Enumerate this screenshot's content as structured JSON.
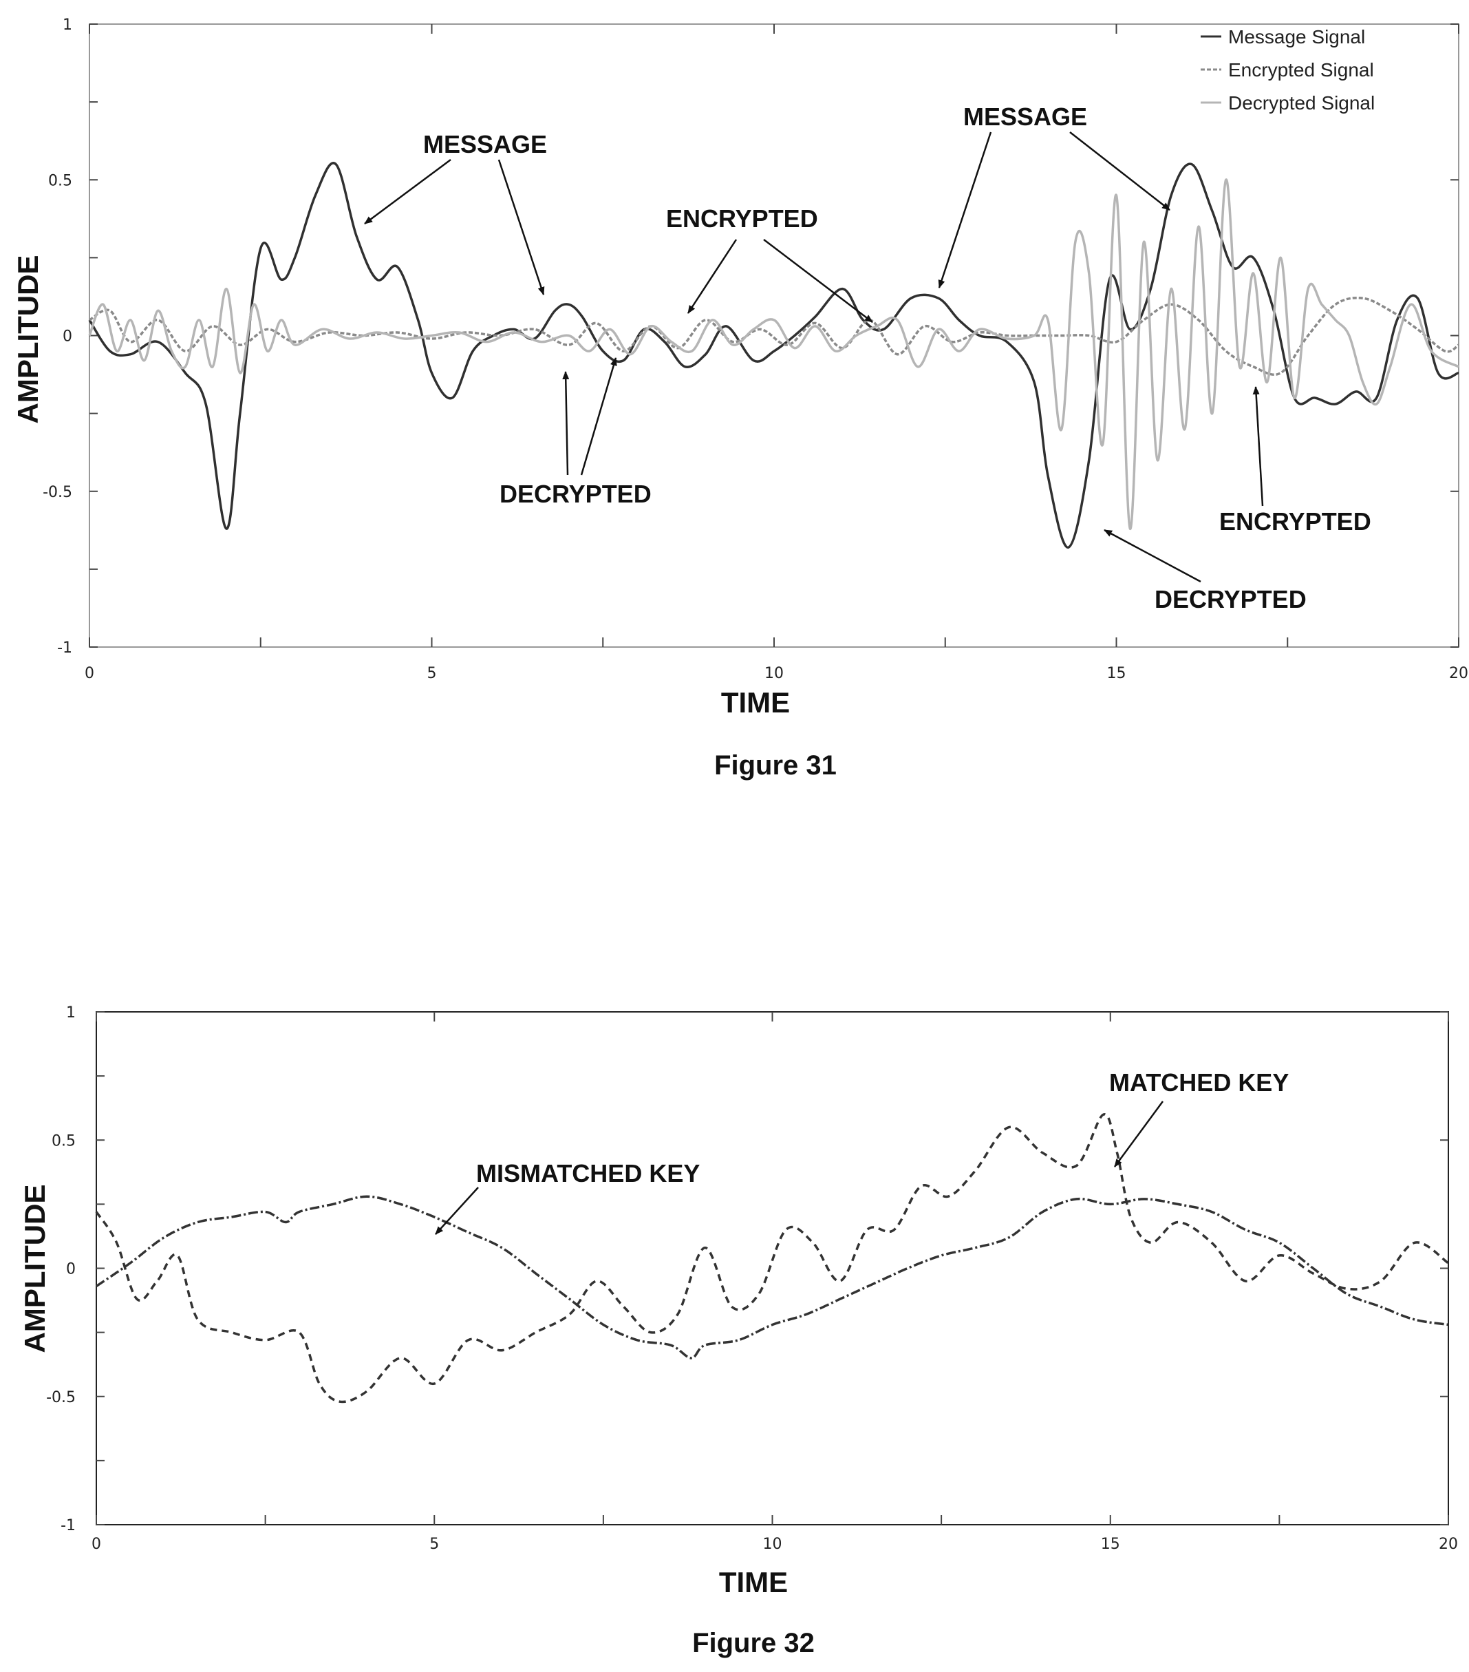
{
  "chart_data": [
    {
      "type": "line",
      "figure_label": "Figure 31",
      "xlabel": "TIME",
      "ylabel": "AMPLITUDE",
      "xlim": [
        0,
        20
      ],
      "ylim": [
        -1,
        1
      ],
      "xticks": [
        0,
        5,
        10,
        15,
        20
      ],
      "xtick_labels": [
        "0",
        "5",
        "10",
        "15",
        "20"
      ],
      "yticks": [
        -1,
        -0.5,
        0,
        0.5,
        1
      ],
      "ytick_labels": [
        "-1",
        "-0.5",
        "0",
        "0.5",
        "1"
      ],
      "grid": false,
      "legend_position": "top-right",
      "series": [
        {
          "name": "Message Signal",
          "color": "#303030",
          "dash": "solid",
          "x": [
            0,
            0.3,
            0.6,
            1.0,
            1.4,
            1.7,
            2.0,
            2.2,
            2.5,
            2.8,
            3.0,
            3.3,
            3.6,
            3.9,
            4.2,
            4.5,
            4.8,
            5.0,
            5.3,
            5.6,
            5.9,
            6.2,
            6.5,
            6.8,
            7.0,
            7.2,
            7.5,
            7.8,
            8.1,
            8.4,
            8.7,
            9.0,
            9.3,
            9.7,
            10.0,
            10.3,
            10.6,
            11.0,
            11.3,
            11.6,
            12.0,
            12.4,
            12.7,
            13.0,
            13.4,
            13.8,
            14.0,
            14.3,
            14.6,
            14.9,
            15.2,
            15.5,
            15.8,
            16.1,
            16.4,
            16.7,
            17.0,
            17.3,
            17.6,
            17.9,
            18.2,
            18.5,
            18.8,
            19.1,
            19.4,
            19.7,
            20.0
          ],
          "y": [
            0.05,
            -0.05,
            -0.06,
            -0.02,
            -0.12,
            -0.22,
            -0.62,
            -0.25,
            0.28,
            0.18,
            0.25,
            0.45,
            0.55,
            0.32,
            0.18,
            0.22,
            0.05,
            -0.12,
            -0.2,
            -0.05,
            0.0,
            0.02,
            -0.01,
            0.08,
            0.1,
            0.06,
            -0.05,
            -0.08,
            0.02,
            -0.02,
            -0.1,
            -0.06,
            0.03,
            -0.08,
            -0.05,
            0.0,
            0.06,
            0.15,
            0.05,
            0.02,
            0.12,
            0.12,
            0.05,
            0.0,
            -0.02,
            -0.15,
            -0.45,
            -0.68,
            -0.4,
            0.18,
            0.02,
            0.15,
            0.45,
            0.55,
            0.4,
            0.22,
            0.25,
            0.08,
            -0.2,
            -0.2,
            -0.22,
            -0.18,
            -0.2,
            0.05,
            0.12,
            -0.12,
            -0.12
          ]
        },
        {
          "name": "Encrypted Signal",
          "color": "#8a8a8a",
          "dash": "6,3",
          "x": [
            0,
            0.3,
            0.6,
            1.0,
            1.4,
            1.8,
            2.2,
            2.6,
            3.0,
            3.5,
            4.0,
            4.5,
            5.0,
            5.5,
            6.0,
            6.5,
            7.0,
            7.4,
            7.8,
            8.2,
            8.6,
            9.0,
            9.4,
            9.8,
            10.2,
            10.6,
            11.0,
            11.4,
            11.8,
            12.2,
            12.6,
            13.0,
            13.4,
            13.8,
            14.2,
            14.6,
            15.0,
            15.4,
            15.8,
            16.2,
            16.6,
            17.0,
            17.4,
            17.8,
            18.2,
            18.6,
            19.0,
            19.4,
            19.8,
            20.0
          ],
          "y": [
            0.05,
            0.08,
            -0.02,
            0.05,
            -0.05,
            0.03,
            -0.03,
            0.02,
            -0.02,
            0.01,
            0.0,
            0.01,
            -0.01,
            0.01,
            0.0,
            0.02,
            -0.03,
            0.04,
            -0.05,
            0.03,
            -0.04,
            0.05,
            -0.02,
            0.02,
            -0.03,
            0.04,
            -0.04,
            0.05,
            -0.06,
            0.03,
            -0.02,
            0.01,
            0.0,
            0.0,
            0.0,
            0.0,
            -0.02,
            0.05,
            0.1,
            0.05,
            -0.05,
            -0.1,
            -0.12,
            0.0,
            0.1,
            0.12,
            0.08,
            0.02,
            -0.05,
            -0.03
          ]
        },
        {
          "name": "Decrypted Signal",
          "color": "#b5b5b5",
          "dash": "solid",
          "x": [
            0,
            0.2,
            0.4,
            0.6,
            0.8,
            1.0,
            1.2,
            1.4,
            1.6,
            1.8,
            2.0,
            2.2,
            2.4,
            2.6,
            2.8,
            3.0,
            3.4,
            3.8,
            4.2,
            4.6,
            5.0,
            5.4,
            5.8,
            6.2,
            6.6,
            7.0,
            7.3,
            7.6,
            7.9,
            8.2,
            8.5,
            8.8,
            9.1,
            9.4,
            9.7,
            10.0,
            10.3,
            10.6,
            10.9,
            11.2,
            11.5,
            11.8,
            12.1,
            12.4,
            12.7,
            13.0,
            13.4,
            13.8,
            14.0,
            14.2,
            14.4,
            14.6,
            14.8,
            15.0,
            15.2,
            15.4,
            15.6,
            15.8,
            16.0,
            16.2,
            16.4,
            16.6,
            16.8,
            17.0,
            17.2,
            17.4,
            17.6,
            17.8,
            18.0,
            18.2,
            18.4,
            18.6,
            18.8,
            19.0,
            19.3,
            19.6,
            20.0
          ],
          "y": [
            0.0,
            0.1,
            -0.05,
            0.05,
            -0.08,
            0.08,
            -0.05,
            -0.1,
            0.05,
            -0.1,
            0.15,
            -0.12,
            0.1,
            -0.05,
            0.05,
            -0.03,
            0.02,
            -0.01,
            0.01,
            -0.01,
            0.0,
            0.01,
            -0.02,
            0.01,
            -0.02,
            0.0,
            -0.05,
            0.02,
            -0.06,
            0.03,
            -0.02,
            -0.05,
            0.05,
            -0.03,
            0.02,
            0.05,
            -0.04,
            0.03,
            -0.05,
            0.0,
            0.03,
            0.05,
            -0.1,
            0.02,
            -0.05,
            0.02,
            -0.01,
            0.0,
            0.05,
            -0.3,
            0.3,
            0.2,
            -0.35,
            0.45,
            -0.62,
            0.3,
            -0.4,
            0.15,
            -0.3,
            0.35,
            -0.25,
            0.5,
            -0.1,
            0.2,
            -0.15,
            0.25,
            -0.2,
            0.15,
            0.1,
            0.05,
            0.0,
            -0.15,
            -0.22,
            -0.1,
            0.1,
            -0.05,
            -0.1
          ]
        }
      ],
      "annotations": [
        {
          "text": "MESSAGE"
        },
        {
          "text": "MESSAGE"
        },
        {
          "text": "ENCRYPTED"
        },
        {
          "text": "ENCRYPTED"
        },
        {
          "text": "DECRYPTED"
        },
        {
          "text": "DECRYPTED"
        }
      ]
    },
    {
      "type": "line",
      "figure_label": "Figure 32",
      "xlabel": "TIME",
      "ylabel": "AMPLITUDE",
      "xlim": [
        0,
        20
      ],
      "ylim": [
        -1,
        1
      ],
      "xticks": [
        0,
        5,
        10,
        15,
        20
      ],
      "xtick_labels": [
        "0",
        "5",
        "10",
        "15",
        "20"
      ],
      "yticks": [
        -1,
        -0.5,
        0,
        0.5,
        1
      ],
      "ytick_labels": [
        "-1",
        "-0.5",
        "0",
        "0.5",
        "1"
      ],
      "grid": false,
      "series": [
        {
          "name": "MISMATCHED KEY",
          "color": "#333333",
          "dash": "14,4,3,4",
          "x": [
            0,
            0.5,
            1.0,
            1.5,
            2.0,
            2.5,
            2.8,
            3.0,
            3.5,
            4.0,
            4.5,
            5.0,
            5.5,
            6.0,
            6.5,
            7.0,
            7.5,
            8.0,
            8.5,
            8.8,
            9.0,
            9.5,
            10.0,
            10.5,
            11.0,
            11.5,
            12.0,
            12.5,
            13.0,
            13.5,
            14.0,
            14.5,
            15.0,
            15.5,
            16.0,
            16.5,
            17.0,
            17.5,
            18.0,
            18.5,
            19.0,
            19.5,
            20.0
          ],
          "y": [
            -0.07,
            0.02,
            0.12,
            0.18,
            0.2,
            0.22,
            0.18,
            0.22,
            0.25,
            0.28,
            0.25,
            0.2,
            0.14,
            0.08,
            -0.02,
            -0.12,
            -0.22,
            -0.28,
            -0.3,
            -0.35,
            -0.3,
            -0.28,
            -0.22,
            -0.18,
            -0.12,
            -0.06,
            0.0,
            0.05,
            0.08,
            0.12,
            0.22,
            0.27,
            0.25,
            0.27,
            0.25,
            0.22,
            0.15,
            0.1,
            0.0,
            -0.1,
            -0.15,
            -0.2,
            -0.22
          ]
        },
        {
          "name": "MATCHED KEY",
          "color": "#333333",
          "dash": "10,7",
          "x": [
            0,
            0.3,
            0.6,
            0.9,
            1.2,
            1.5,
            2.0,
            2.5,
            3.0,
            3.3,
            3.6,
            4.0,
            4.5,
            5.0,
            5.5,
            6.0,
            6.5,
            7.0,
            7.4,
            7.8,
            8.2,
            8.6,
            9.0,
            9.4,
            9.8,
            10.2,
            10.6,
            11.0,
            11.4,
            11.8,
            12.2,
            12.6,
            13.0,
            13.5,
            14.0,
            14.5,
            14.9,
            15.1,
            15.3,
            15.6,
            16.0,
            16.5,
            17.0,
            17.5,
            18.0,
            18.5,
            19.0,
            19.5,
            20.0
          ],
          "y": [
            0.22,
            0.1,
            -0.12,
            -0.05,
            0.05,
            -0.2,
            -0.25,
            -0.28,
            -0.25,
            -0.45,
            -0.52,
            -0.48,
            -0.35,
            -0.45,
            -0.28,
            -0.32,
            -0.25,
            -0.18,
            -0.05,
            -0.15,
            -0.25,
            -0.18,
            0.08,
            -0.15,
            -0.1,
            0.15,
            0.1,
            -0.05,
            0.15,
            0.15,
            0.32,
            0.28,
            0.38,
            0.55,
            0.45,
            0.4,
            0.6,
            0.45,
            0.2,
            0.1,
            0.18,
            0.1,
            -0.05,
            0.05,
            -0.02,
            -0.08,
            -0.05,
            0.1,
            0.02
          ]
        }
      ],
      "annotations": [
        {
          "text": "MISMATCHED KEY"
        },
        {
          "text": "MATCHED KEY"
        }
      ]
    }
  ]
}
